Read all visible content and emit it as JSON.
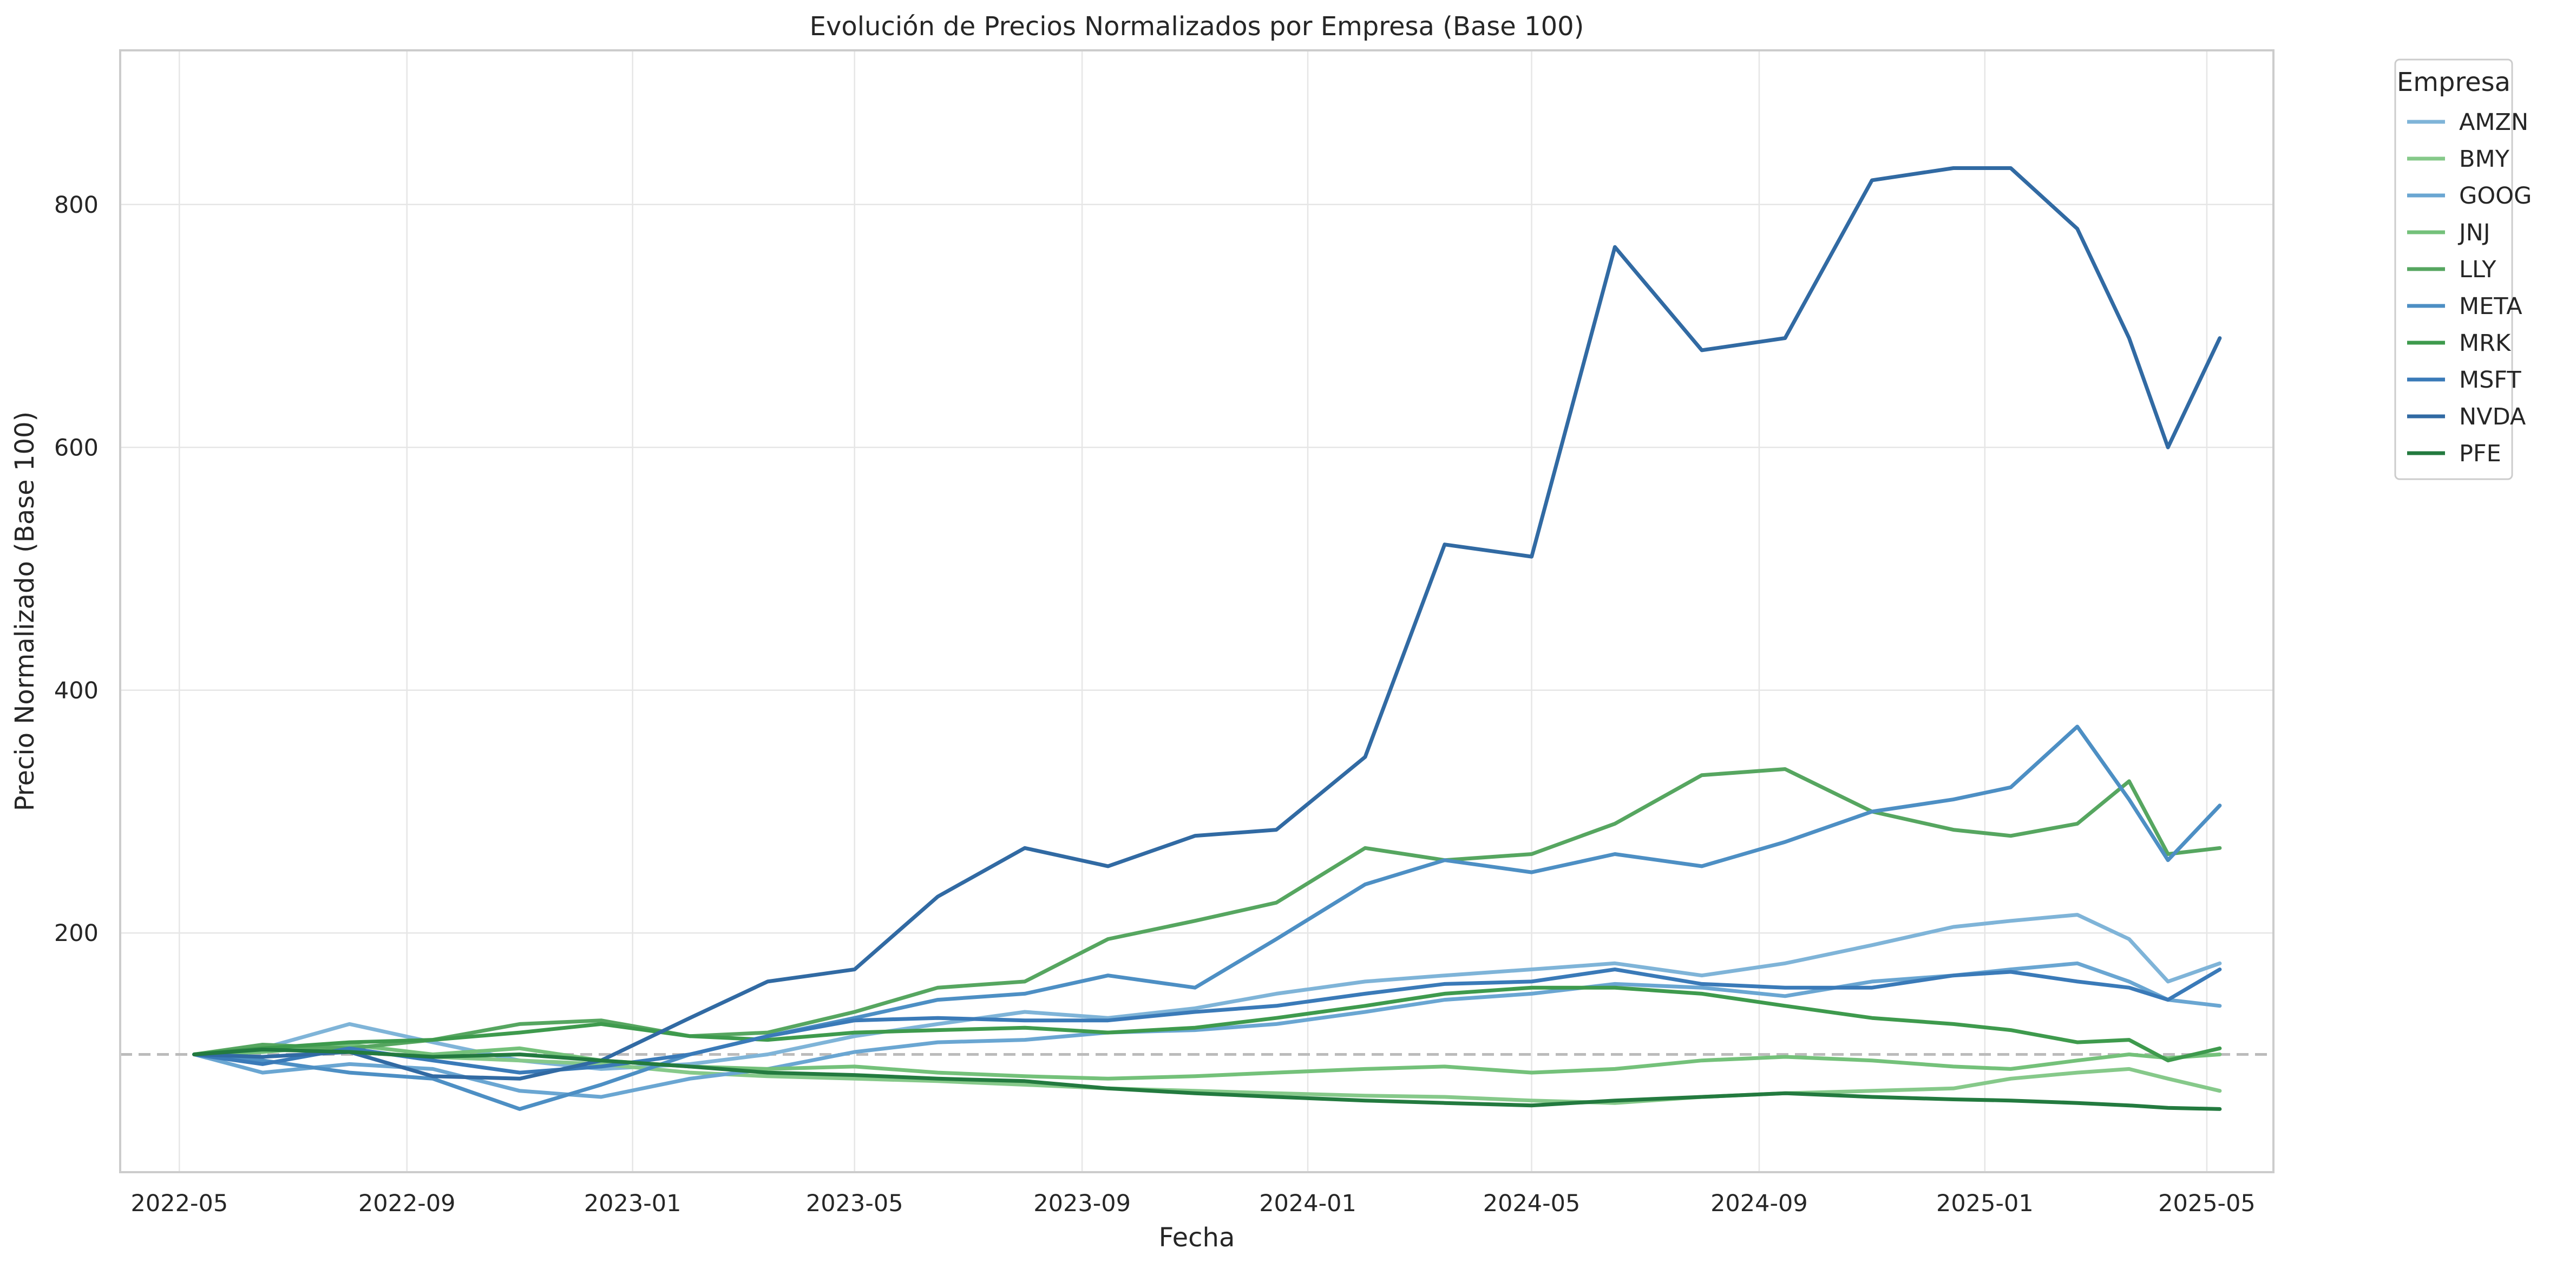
{
  "chart_data": {
    "type": "line",
    "title": "Evolución de Precios Normalizados por Empresa (Base 100)",
    "xlabel": "Fecha",
    "ylabel": "Precio Normalizado (Base 100)",
    "x_ticks": [
      "2022-05",
      "2022-09",
      "2023-01",
      "2023-05",
      "2023-09",
      "2024-01",
      "2024-05",
      "2024-09",
      "2025-01",
      "2025-05"
    ],
    "y_ticks": [
      200,
      400,
      600,
      800
    ],
    "ylim": [
      3,
      927
    ],
    "xlim": [
      "2022-03-30",
      "2025-06-06"
    ],
    "grid": true,
    "reference_line": {
      "y": 100,
      "style": "dashed",
      "color": "#bbbbbb"
    },
    "legend": {
      "title": "Empresa",
      "placement": "outside-top-right"
    },
    "x": [
      "2022-05-09",
      "2022-06-15",
      "2022-08-01",
      "2022-09-15",
      "2022-11-01",
      "2022-12-15",
      "2023-02-01",
      "2023-03-15",
      "2023-05-01",
      "2023-06-15",
      "2023-08-01",
      "2023-09-15",
      "2023-11-01",
      "2023-12-15",
      "2024-02-01",
      "2024-03-15",
      "2024-05-01",
      "2024-06-15",
      "2024-08-01",
      "2024-09-15",
      "2024-11-01",
      "2024-12-15",
      "2025-01-15",
      "2025-02-20",
      "2025-03-20",
      "2025-04-10",
      "2025-05-08"
    ],
    "series": [
      {
        "name": "AMZN",
        "color": "#7fb4d8",
        "values": [
          100,
          105,
          125,
          110,
          95,
          88,
          92,
          100,
          115,
          125,
          135,
          130,
          138,
          150,
          160,
          165,
          170,
          175,
          165,
          175,
          190,
          205,
          210,
          215,
          195,
          160,
          175
        ]
      },
      {
        "name": "BMY",
        "color": "#86c98a",
        "values": [
          100,
          105,
          102,
          98,
          95,
          92,
          85,
          82,
          80,
          78,
          75,
          72,
          70,
          68,
          66,
          65,
          62,
          60,
          65,
          68,
          70,
          72,
          80,
          85,
          88,
          80,
          70
        ]
      },
      {
        "name": "GOOG",
        "color": "#6aa6d2",
        "values": [
          100,
          85,
          92,
          88,
          70,
          65,
          80,
          88,
          102,
          110,
          112,
          118,
          120,
          125,
          135,
          145,
          150,
          158,
          155,
          148,
          160,
          165,
          170,
          175,
          160,
          145,
          140
        ]
      },
      {
        "name": "JNJ",
        "color": "#74c17a",
        "values": [
          100,
          102,
          108,
          100,
          105,
          95,
          90,
          88,
          90,
          85,
          82,
          80,
          82,
          85,
          88,
          90,
          85,
          88,
          95,
          98,
          95,
          90,
          88,
          95,
          100,
          97,
          100
        ]
      },
      {
        "name": "LLY",
        "color": "#56a660",
        "values": [
          100,
          108,
          105,
          112,
          125,
          128,
          115,
          118,
          135,
          155,
          160,
          195,
          210,
          225,
          270,
          260,
          265,
          290,
          330,
          335,
          300,
          285,
          280,
          290,
          325,
          265,
          270
        ]
      },
      {
        "name": "META",
        "color": "#4d8fc4",
        "values": [
          100,
          95,
          85,
          80,
          55,
          75,
          100,
          115,
          130,
          145,
          150,
          165,
          155,
          195,
          240,
          260,
          250,
          265,
          255,
          275,
          300,
          310,
          320,
          370,
          310,
          260,
          305
        ]
      },
      {
        "name": "MRK",
        "color": "#3e9a4d",
        "values": [
          100,
          105,
          110,
          112,
          118,
          125,
          115,
          112,
          118,
          120,
          122,
          118,
          122,
          130,
          140,
          150,
          155,
          155,
          150,
          140,
          130,
          125,
          120,
          110,
          112,
          95,
          105
        ]
      },
      {
        "name": "MSFT",
        "color": "#3a7ab8",
        "values": [
          100,
          92,
          105,
          95,
          85,
          90,
          100,
          115,
          128,
          130,
          128,
          128,
          135,
          140,
          150,
          158,
          160,
          170,
          158,
          155,
          155,
          165,
          168,
          160,
          155,
          145,
          170
        ]
      },
      {
        "name": "NVDA",
        "color": "#316aa3",
        "values": [
          100,
          98,
          102,
          82,
          80,
          95,
          130,
          160,
          170,
          230,
          270,
          255,
          280,
          285,
          345,
          520,
          510,
          765,
          680,
          690,
          820,
          830,
          830,
          780,
          690,
          600,
          690
        ]
      },
      {
        "name": "PFE",
        "color": "#237a3f",
        "values": [
          100,
          104,
          102,
          98,
          100,
          95,
          90,
          85,
          83,
          80,
          78,
          72,
          68,
          65,
          62,
          60,
          58,
          62,
          65,
          68,
          65,
          63,
          62,
          60,
          58,
          56,
          55
        ]
      }
    ]
  }
}
